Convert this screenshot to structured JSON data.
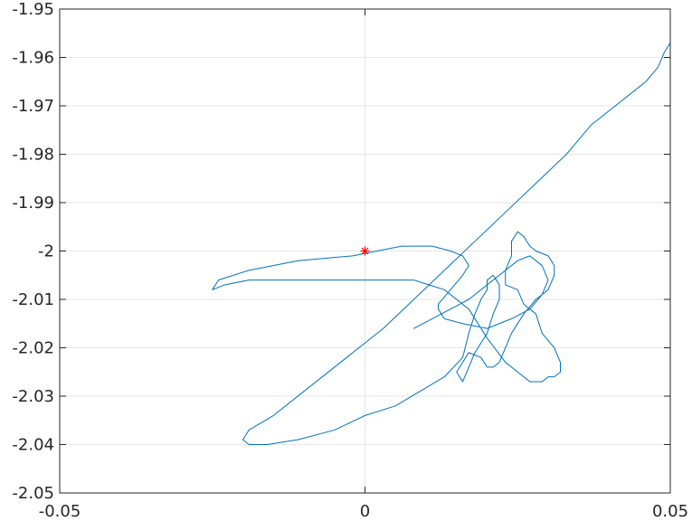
{
  "chart_data": {
    "type": "line",
    "title": "",
    "xlabel": "",
    "ylabel": "",
    "xlim": [
      -0.05,
      0.05
    ],
    "ylim": [
      -2.05,
      -1.95
    ],
    "grid": true,
    "legend": "none",
    "x_ticks": [
      -0.05,
      0,
      0.05
    ],
    "x_tick_labels": [
      "-0.05",
      "0",
      "0.05"
    ],
    "y_ticks": [
      -1.95,
      -1.96,
      -1.97,
      -1.98,
      -1.99,
      -2,
      -2.01,
      -2.02,
      -2.03,
      -2.04,
      -2.05
    ],
    "y_tick_labels": [
      "-1.95",
      "-1.96",
      "-1.97",
      "-1.98",
      "-1.99",
      "-2",
      "-2.01",
      "-2.02",
      "-2.03",
      "-2.04",
      "-2.05"
    ],
    "series": [
      {
        "color": "#0072BD",
        "x": [
          0.05,
          0.049,
          0.048,
          0.046,
          0.044,
          0.041,
          0.037,
          0.033,
          0.028,
          0.023,
          0.018,
          0.013,
          0.008,
          0.003,
          -0.003,
          -0.009,
          -0.015,
          -0.019,
          -0.02,
          -0.019,
          -0.016,
          -0.011,
          -0.005,
          0.0,
          0.005,
          0.009,
          0.013,
          0.016,
          0.017,
          0.018,
          0.019,
          0.02,
          0.02,
          0.021,
          0.022,
          0.022,
          0.021,
          0.02,
          0.018,
          0.017,
          0.016,
          0.015,
          0.016,
          0.017,
          0.019,
          0.02,
          0.021,
          0.022,
          0.023,
          0.024,
          0.026,
          0.028,
          0.03,
          0.031,
          0.031,
          0.03,
          0.028,
          0.027,
          0.026,
          0.025,
          0.024,
          0.024,
          0.023,
          0.023,
          0.025,
          0.026,
          0.028,
          0.029,
          0.031,
          0.032,
          0.032,
          0.031,
          0.03,
          0.029,
          0.027,
          0.025,
          0.023,
          0.02,
          0.017,
          0.013,
          0.008,
          0.003,
          -0.004,
          -0.012,
          -0.019,
          -0.023,
          -0.025,
          -0.024,
          -0.019,
          -0.011,
          -0.002,
          0.006,
          0.011,
          0.014,
          0.016,
          0.017,
          0.016,
          0.014,
          0.012,
          0.012,
          0.013,
          0.016,
          0.02,
          0.024,
          0.027,
          0.029,
          0.03,
          0.029,
          0.027,
          0.025,
          0.022,
          0.019,
          0.017,
          0.014,
          0.011,
          0.008
        ],
        "y": [
          -1.957,
          -1.959,
          -1.962,
          -1.965,
          -1.967,
          -1.97,
          -1.974,
          -1.98,
          -1.986,
          -1.992,
          -1.998,
          -2.004,
          -2.01,
          -2.016,
          -2.022,
          -2.028,
          -2.034,
          -2.037,
          -2.039,
          -2.04,
          -2.04,
          -2.039,
          -2.037,
          -2.034,
          -2.032,
          -2.029,
          -2.026,
          -2.022,
          -2.017,
          -2.013,
          -2.01,
          -2.008,
          -2.006,
          -2.005,
          -2.007,
          -2.01,
          -2.013,
          -2.017,
          -2.021,
          -2.024,
          -2.027,
          -2.025,
          -2.023,
          -2.021,
          -2.022,
          -2.024,
          -2.024,
          -2.023,
          -2.02,
          -2.017,
          -2.013,
          -2.01,
          -2.008,
          -2.005,
          -2.003,
          -2.001,
          -2.0,
          -1.999,
          -1.997,
          -1.996,
          -1.998,
          -2.001,
          -2.004,
          -2.007,
          -2.008,
          -2.011,
          -2.013,
          -2.017,
          -2.02,
          -2.023,
          -2.025,
          -2.026,
          -2.026,
          -2.027,
          -2.027,
          -2.025,
          -2.023,
          -2.018,
          -2.012,
          -2.008,
          -2.006,
          -2.006,
          -2.006,
          -2.006,
          -2.006,
          -2.007,
          -2.008,
          -2.006,
          -2.004,
          -2.002,
          -2.001,
          -1.999,
          -1.999,
          -2.0,
          -2.001,
          -2.003,
          -2.005,
          -2.008,
          -2.011,
          -2.012,
          -2.014,
          -2.015,
          -2.016,
          -2.014,
          -2.012,
          -2.009,
          -2.006,
          -2.003,
          -2.001,
          -2.002,
          -2.005,
          -2.008,
          -2.01,
          -2.012,
          -2.014,
          -2.016
        ]
      }
    ],
    "markers": [
      {
        "shape": "asterisk",
        "x": 0,
        "y": -2,
        "color": "#FF0000"
      }
    ]
  }
}
